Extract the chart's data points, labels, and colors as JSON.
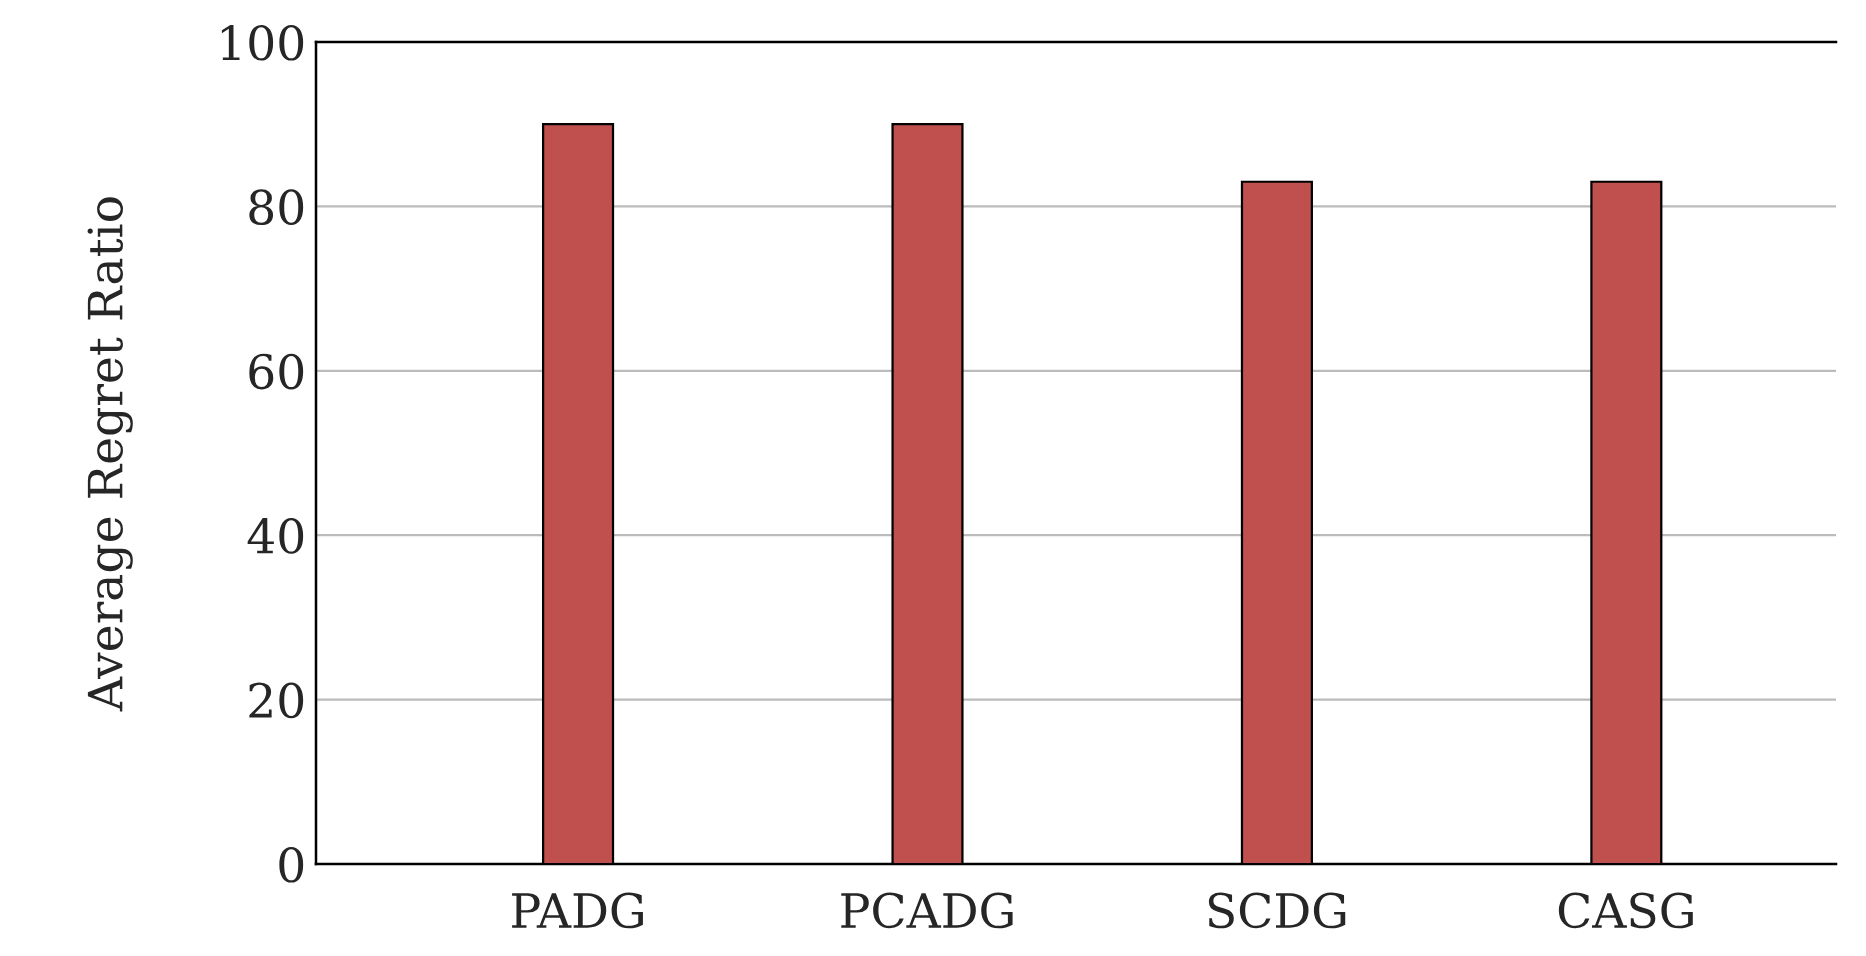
{
  "chart_data": {
    "type": "bar",
    "ylabel": "Average Regret Ratio",
    "categories": [
      "PADG",
      "PCADG",
      "SCDG",
      "CASG"
    ],
    "values": [
      90,
      90,
      83,
      83
    ],
    "color": "#c0504d",
    "ylim": [
      0,
      100
    ],
    "yticks": [
      0,
      20,
      40,
      60,
      80,
      100
    ],
    "grid": "y",
    "legend": false
  }
}
